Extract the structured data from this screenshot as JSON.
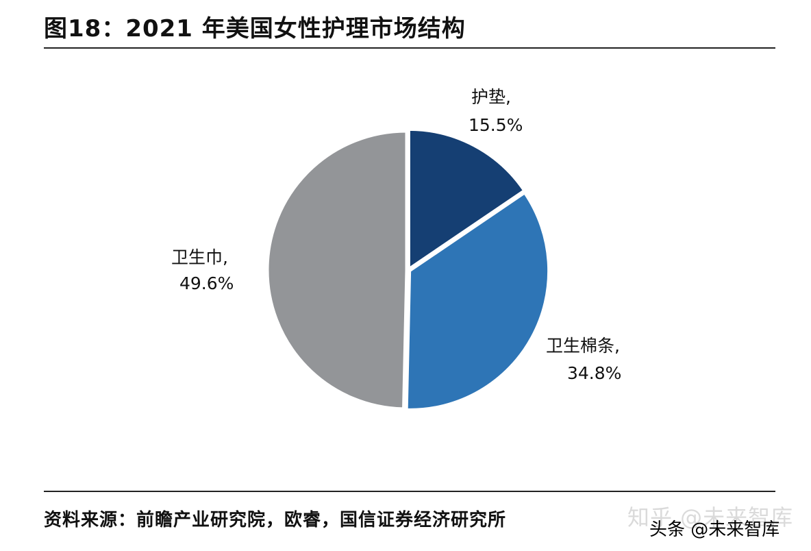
{
  "title": "图18：2021 年美国女性护理市场结构",
  "source": "资料来源：前瞻产业研究院，欧睿，国信证券经济研究所",
  "watermark": "知乎 @未来智库",
  "overlay_text": "头条 @未来智库",
  "chart_data": {
    "type": "pie",
    "title": "图18：2021 年美国女性护理市场结构",
    "start": "12 o'clock, clockwise",
    "slices": [
      {
        "label": "护垫",
        "value": 15.5,
        "value_label": "15.5%",
        "color": "#153f73"
      },
      {
        "label": "卫生棉条",
        "value": 34.8,
        "value_label": "34.8%",
        "color": "#2e75b6"
      },
      {
        "label": "卫生巾",
        "value": 49.6,
        "value_label": "49.6%",
        "color": "#939598"
      }
    ]
  }
}
